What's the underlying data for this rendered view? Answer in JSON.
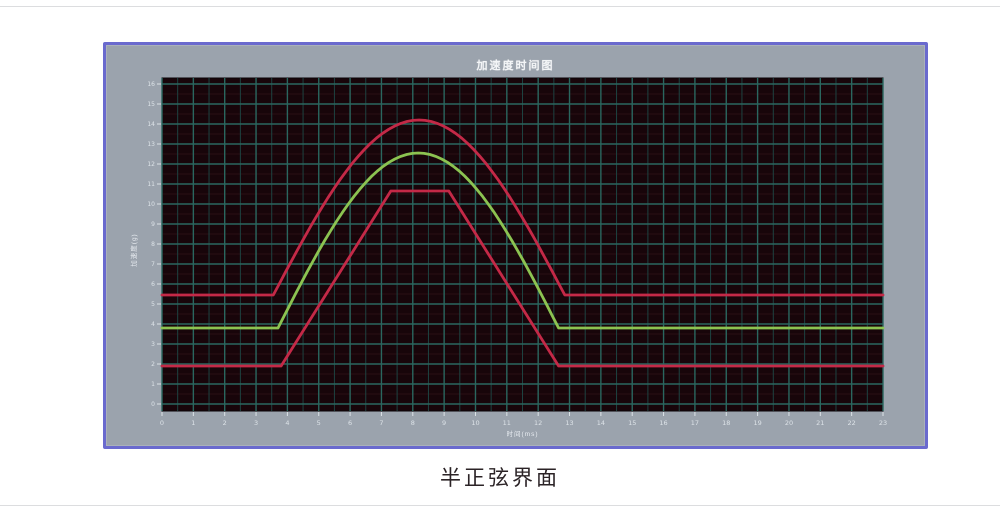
{
  "page": {
    "caption": "半正弦界面"
  },
  "window": {
    "title": "加速度时间图"
  },
  "chart_data": {
    "type": "line",
    "title": "加速度时间图",
    "xlabel": "时间(ms)",
    "ylabel": "加速度(g)",
    "x_ticks": [
      "0",
      "1",
      "2",
      "3",
      "4",
      "5",
      "6",
      "7",
      "8",
      "9",
      "10",
      "11",
      "12",
      "13",
      "14",
      "15",
      "16",
      "17",
      "18",
      "19",
      "20",
      "21",
      "22",
      "23"
    ],
    "y_ticks": [
      "16",
      "15",
      "14",
      "13",
      "12",
      "11",
      "10",
      "9",
      "8",
      "7",
      "6",
      "5",
      "4",
      "3",
      "2",
      "1",
      "0"
    ],
    "xlim": [
      0,
      23
    ],
    "ylim": [
      0,
      16
    ],
    "grid": true,
    "legend": false,
    "colors": {
      "plot_bg": "#18050a",
      "grid_major": "#2a675f",
      "grid_minor_v": "#1d4341",
      "grid_minor_h": "#2a0e14",
      "axis_text": "#dde3e8",
      "tolerance_red": "#c42947",
      "nominal_green": "#8cc351"
    },
    "series": [
      {
        "id": "upper-tolerance",
        "shape": "half-sine",
        "color": "#c42947",
        "baseline": 5.45,
        "peak": 14.2,
        "pulse_start": 3.55,
        "pulse_end": 12.85
      },
      {
        "id": "nominal-half-sine",
        "shape": "half-sine",
        "color": "#8cc351",
        "baseline": 3.8,
        "peak": 12.55,
        "pulse_start": 3.7,
        "pulse_end": 12.65
      },
      {
        "id": "lower-tolerance",
        "shape": "trapezoid",
        "color": "#c42947",
        "baseline": 1.9,
        "peak": 10.65,
        "pulse_start": 3.8,
        "flat_start": 7.3,
        "flat_end": 9.15,
        "pulse_end": 12.65
      }
    ]
  }
}
